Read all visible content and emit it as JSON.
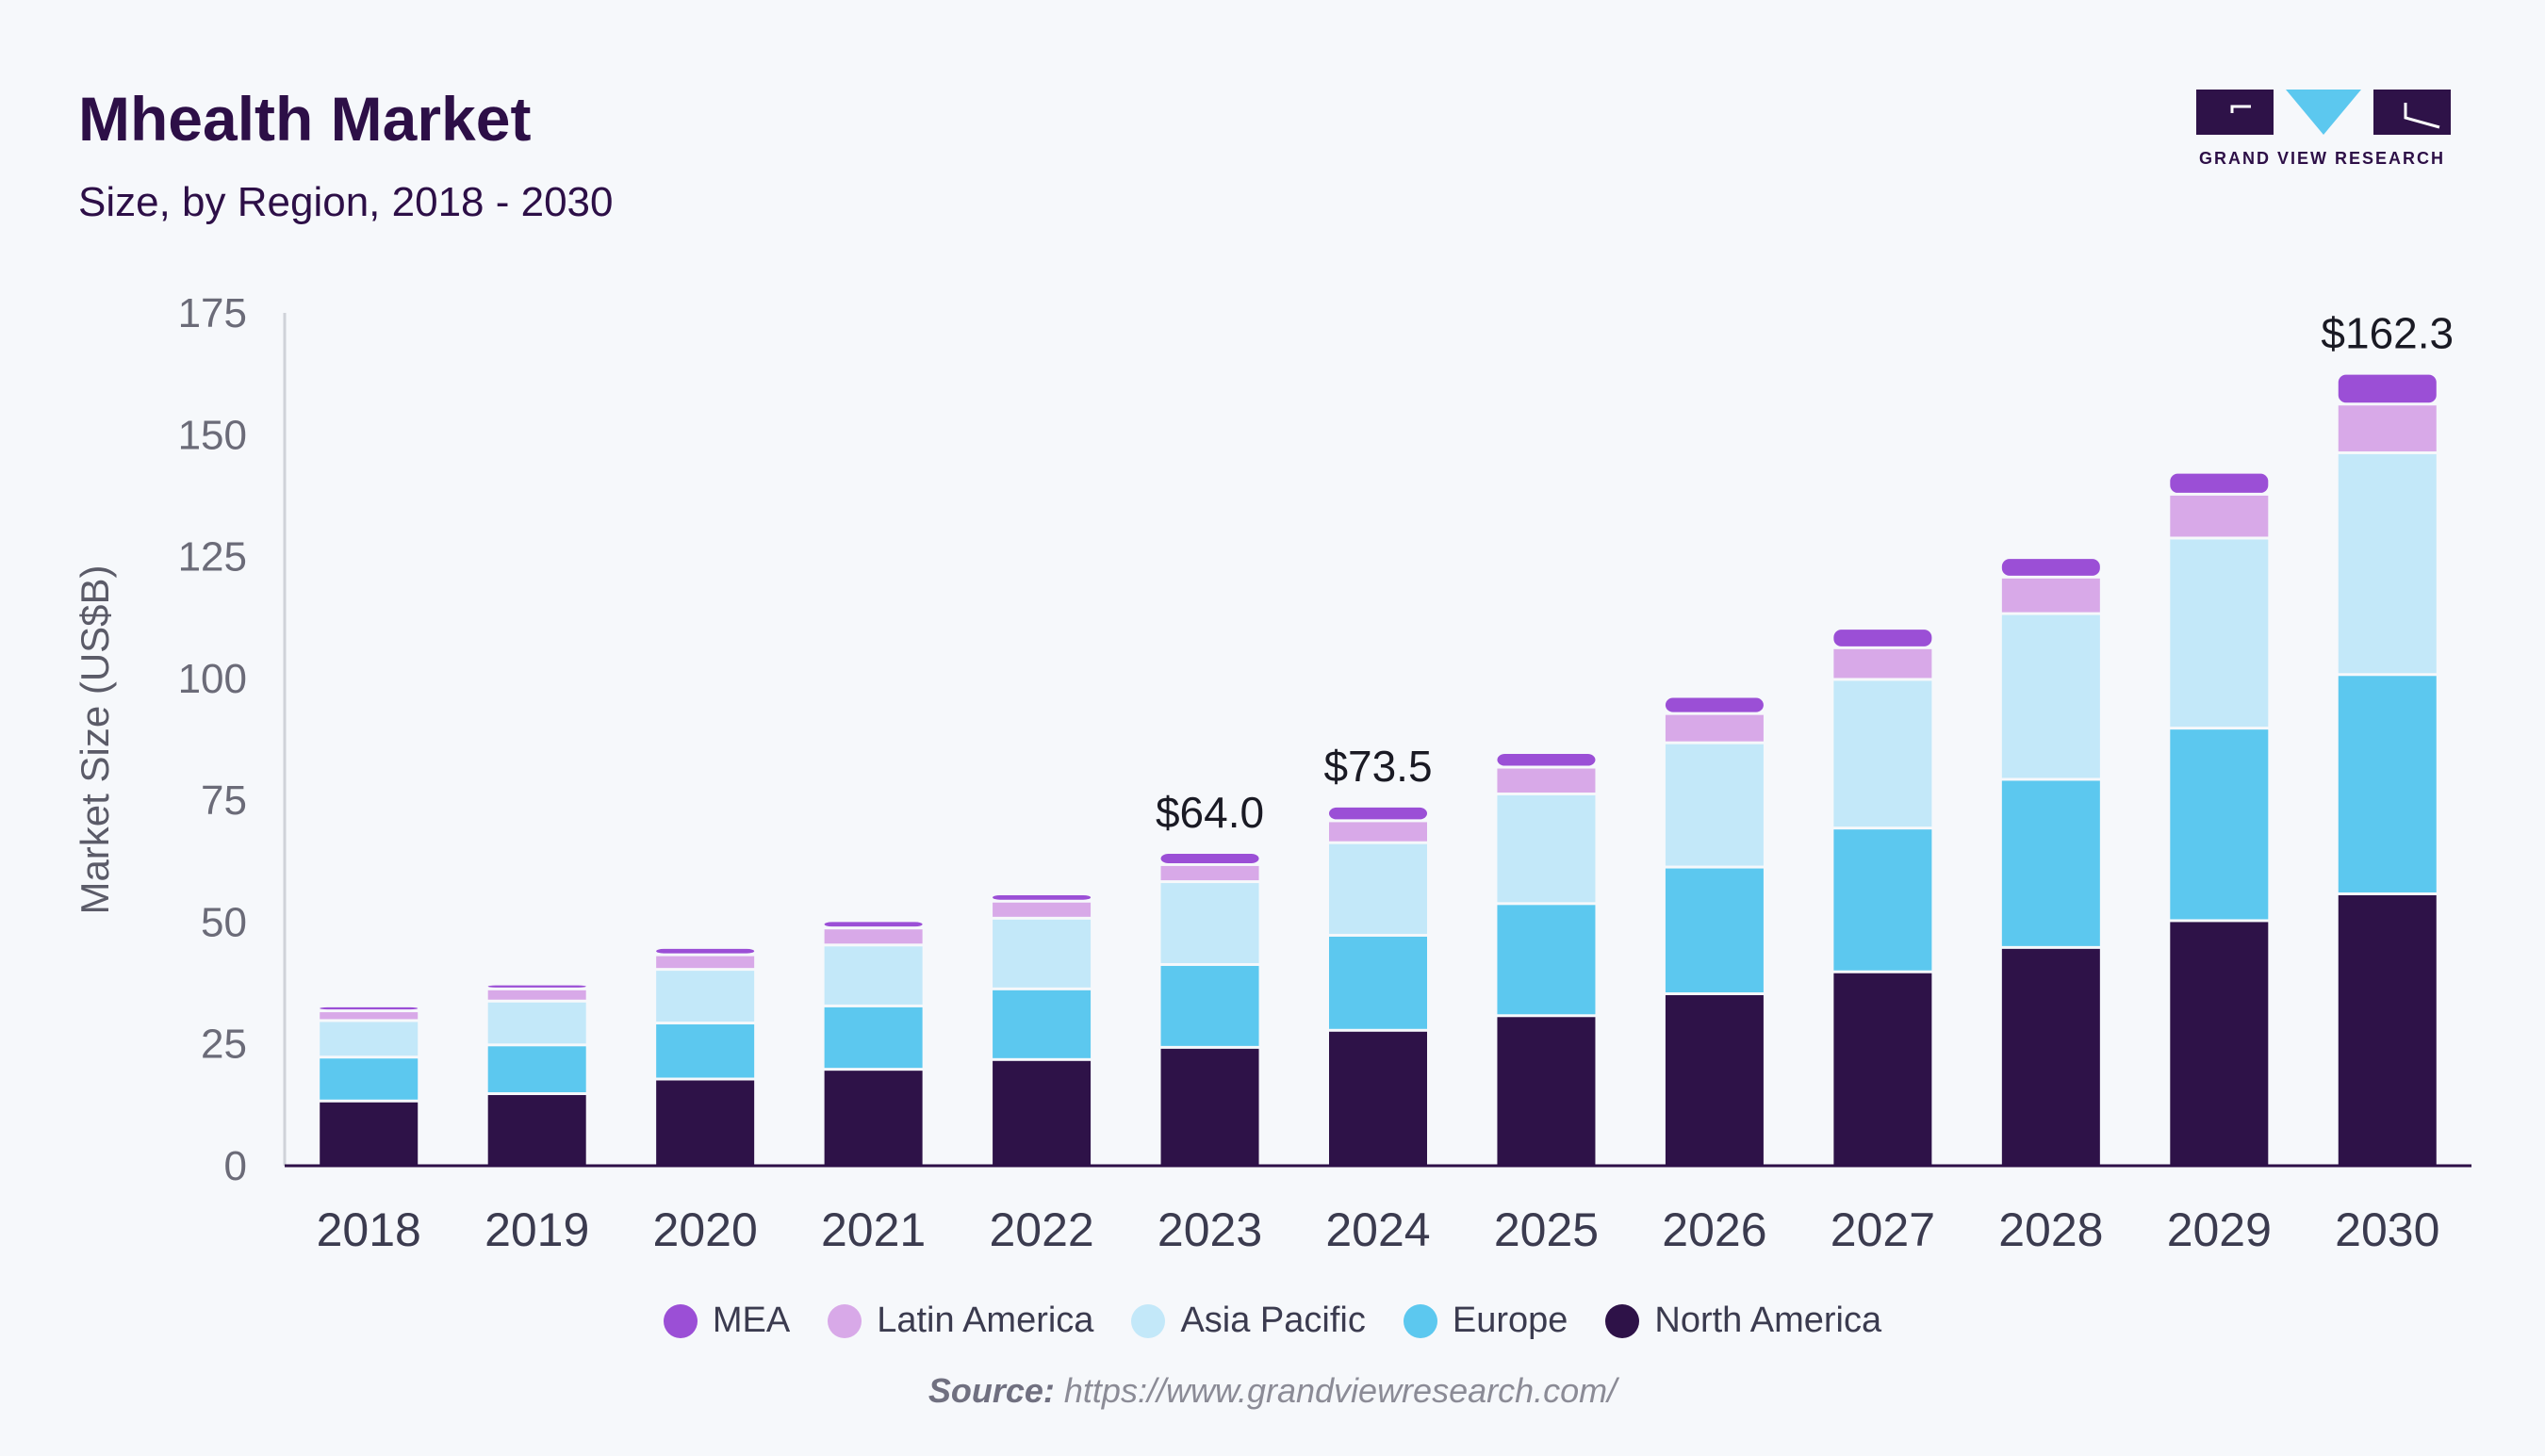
{
  "header": {
    "title": "Mhealth Market",
    "subtitle": "Size, by Region, 2018 - 2030"
  },
  "logo": {
    "text": "GRAND VIEW RESEARCH"
  },
  "source": {
    "label": "Source:",
    "url": "https://www.grandviewresearch.com/"
  },
  "colors": {
    "MEA": "#9b4fd6",
    "Latin America": "#d8a9e8",
    "Asia Pacific": "#c3e8f9",
    "Europe": "#5cc8ef",
    "North America": "#2e1248"
  },
  "legend": [
    "MEA",
    "Latin America",
    "Asia Pacific",
    "Europe",
    "North America"
  ],
  "chart_data": {
    "type": "bar",
    "stacked": true,
    "title": "Mhealth Market",
    "subtitle": "Size, by Region, 2018 - 2030",
    "xlabel": "",
    "ylabel": "Market Size (US$B)",
    "ylim": [
      0,
      175
    ],
    "yticks": [
      0,
      25,
      50,
      75,
      100,
      125,
      150,
      175
    ],
    "categories": [
      "2018",
      "2019",
      "2020",
      "2021",
      "2022",
      "2023",
      "2024",
      "2025",
      "2026",
      "2027",
      "2028",
      "2029",
      "2030"
    ],
    "series": [
      {
        "name": "North America",
        "values": [
          13,
          14.5,
          17.5,
          19.5,
          21.5,
          24,
          27.5,
          30.5,
          35,
          39.5,
          44.5,
          50,
          55.5
        ]
      },
      {
        "name": "Europe",
        "values": [
          9,
          10,
          11.5,
          13,
          14.5,
          17,
          19.5,
          23,
          26,
          29.5,
          34.5,
          39.5,
          45
        ]
      },
      {
        "name": "Asia Pacific",
        "values": [
          7.5,
          9,
          11,
          12.5,
          14.5,
          17,
          19,
          22.5,
          25.5,
          30.5,
          34,
          39,
          45.5
        ]
      },
      {
        "name": "Latin America",
        "values": [
          2,
          2.5,
          3,
          3.5,
          3.5,
          3.5,
          4.5,
          5.5,
          6,
          6.5,
          7.5,
          9,
          10
        ]
      },
      {
        "name": "MEA",
        "values": [
          1,
          1,
          1.5,
          1.5,
          1.5,
          2.5,
          3,
          3,
          3.5,
          4,
          4,
          4.5,
          6.3
        ]
      }
    ],
    "annotations": [
      {
        "category": "2023",
        "text": "$64.0"
      },
      {
        "category": "2024",
        "text": "$73.5"
      },
      {
        "category": "2030",
        "text": "$162.3"
      }
    ],
    "grid": false,
    "legend_position": "bottom"
  }
}
